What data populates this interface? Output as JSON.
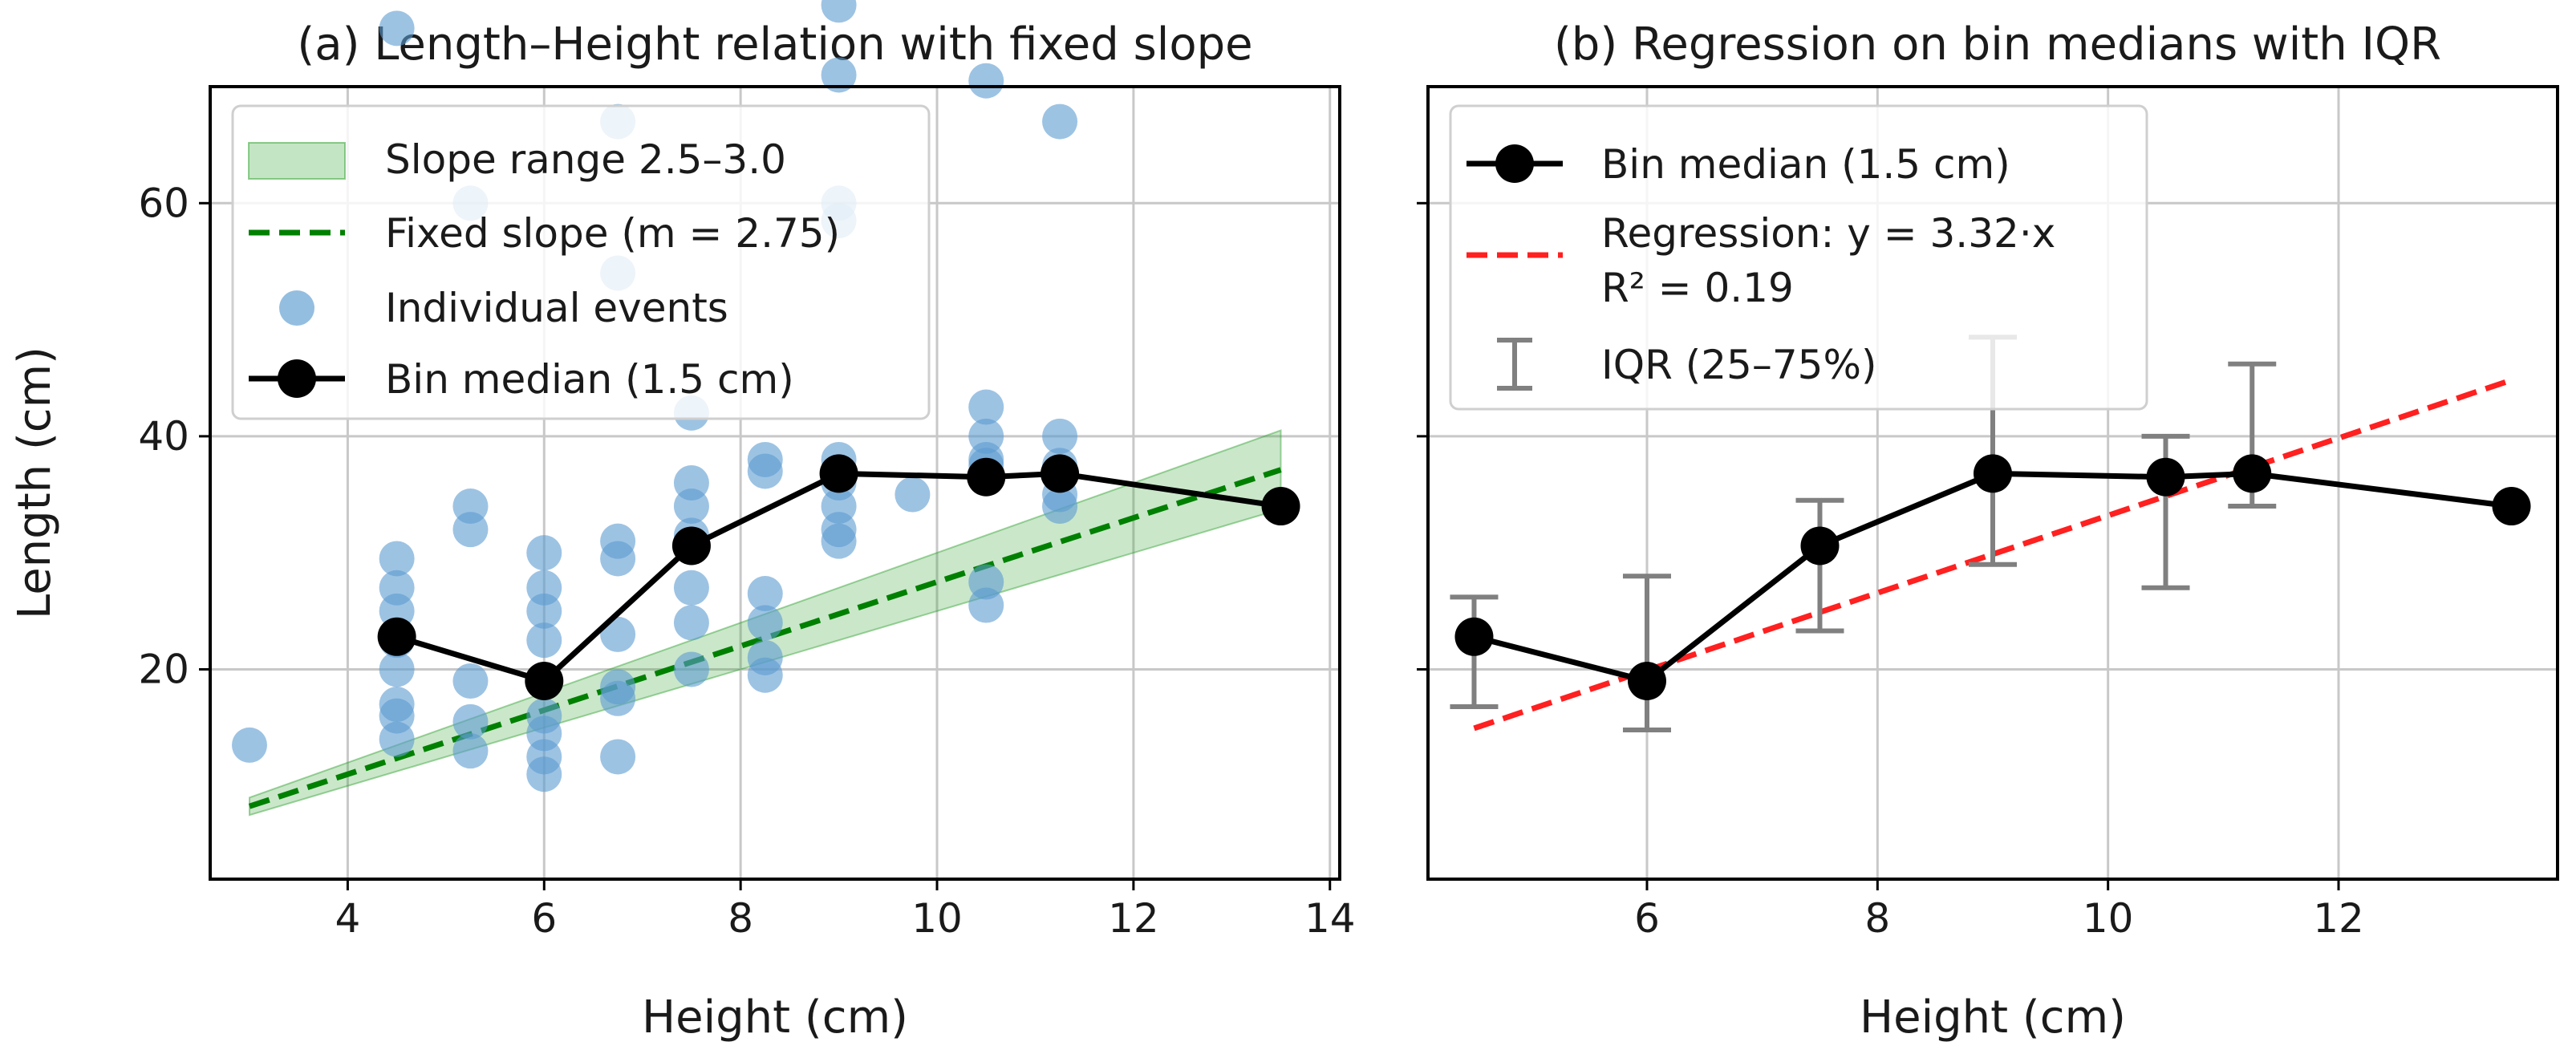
{
  "figure": {
    "panels": [
      {
        "id": "a",
        "title": "(a) Length–Height relation with fixed slope",
        "xlabel": "Height (cm)",
        "ylabel": "Length (cm)"
      },
      {
        "id": "b",
        "title": "(b) Regression on bin medians with IQR",
        "xlabel": "Height (cm)",
        "ylabel": ""
      }
    ]
  },
  "colors": {
    "scatter": "#5b9bd0",
    "band": "#2ca02c",
    "fixed_line": "#008000",
    "median": "#000000",
    "regression": "#ff2020",
    "iqr": "#808080",
    "grid": "#c8c8c8"
  },
  "chart_data": [
    {
      "type": "scatter",
      "title": "(a) Length–Height relation with fixed slope",
      "xlabel": "Height (cm)",
      "ylabel": "Length (cm)",
      "xlim": [
        2.6,
        14.1
      ],
      "ylim": [
        2.0,
        70.0
      ],
      "xticks": [
        4,
        6,
        8,
        10,
        12,
        14
      ],
      "yticks": [
        20,
        40,
        60
      ],
      "grid": true,
      "legend_position": "top-left",
      "legend": [
        {
          "key": "band",
          "label": "Slope range 2.5–3.0"
        },
        {
          "key": "fixed",
          "label": "Fixed slope (m = 2.75)"
        },
        {
          "key": "events",
          "label": "Individual events"
        },
        {
          "key": "median",
          "label": "Bin median (1.5 cm)"
        }
      ],
      "slope_band": {
        "x_range": [
          3.0,
          13.5
        ],
        "slope_min": 2.5,
        "slope_max": 3.0
      },
      "fixed_slope": {
        "x_range": [
          3.0,
          13.5
        ],
        "slope": 2.75
      },
      "individual_events": [
        {
          "x": 3.0,
          "y": 13.5
        },
        {
          "x": 4.5,
          "y": 29.5
        },
        {
          "x": 4.5,
          "y": 27
        },
        {
          "x": 4.5,
          "y": 25
        },
        {
          "x": 4.5,
          "y": 22.5
        },
        {
          "x": 4.5,
          "y": 20
        },
        {
          "x": 4.5,
          "y": 17
        },
        {
          "x": 4.5,
          "y": 16
        },
        {
          "x": 4.5,
          "y": 14
        },
        {
          "x": 4.5,
          "y": 75
        },
        {
          "x": 5.25,
          "y": 34
        },
        {
          "x": 5.25,
          "y": 32
        },
        {
          "x": 5.25,
          "y": 19
        },
        {
          "x": 5.25,
          "y": 15.5
        },
        {
          "x": 5.25,
          "y": 13
        },
        {
          "x": 5.25,
          "y": 60
        },
        {
          "x": 6.0,
          "y": 30
        },
        {
          "x": 6.0,
          "y": 27
        },
        {
          "x": 6.0,
          "y": 25
        },
        {
          "x": 6.0,
          "y": 22.5
        },
        {
          "x": 6.0,
          "y": 19
        },
        {
          "x": 6.0,
          "y": 16
        },
        {
          "x": 6.0,
          "y": 14.5
        },
        {
          "x": 6.0,
          "y": 12.5
        },
        {
          "x": 6.0,
          "y": 11
        },
        {
          "x": 6.75,
          "y": 67
        },
        {
          "x": 6.75,
          "y": 54
        },
        {
          "x": 6.75,
          "y": 31
        },
        {
          "x": 6.75,
          "y": 29.5
        },
        {
          "x": 6.75,
          "y": 23
        },
        {
          "x": 6.75,
          "y": 18.5
        },
        {
          "x": 6.75,
          "y": 17.5
        },
        {
          "x": 6.75,
          "y": 12.5
        },
        {
          "x": 7.5,
          "y": 42
        },
        {
          "x": 7.5,
          "y": 36
        },
        {
          "x": 7.5,
          "y": 34
        },
        {
          "x": 7.5,
          "y": 31.5
        },
        {
          "x": 7.5,
          "y": 27
        },
        {
          "x": 7.5,
          "y": 24
        },
        {
          "x": 7.5,
          "y": 20
        },
        {
          "x": 8.25,
          "y": 38
        },
        {
          "x": 8.25,
          "y": 37
        },
        {
          "x": 8.25,
          "y": 26.5
        },
        {
          "x": 8.25,
          "y": 24
        },
        {
          "x": 8.25,
          "y": 21
        },
        {
          "x": 8.25,
          "y": 19.5
        },
        {
          "x": 9.0,
          "y": 77
        },
        {
          "x": 9.0,
          "y": 71
        },
        {
          "x": 9.0,
          "y": 60
        },
        {
          "x": 9.0,
          "y": 58.5
        },
        {
          "x": 9.0,
          "y": 38
        },
        {
          "x": 9.0,
          "y": 36
        },
        {
          "x": 9.0,
          "y": 34
        },
        {
          "x": 9.0,
          "y": 32
        },
        {
          "x": 9.0,
          "y": 31
        },
        {
          "x": 9.75,
          "y": 35
        },
        {
          "x": 10.5,
          "y": 70.5
        },
        {
          "x": 10.5,
          "y": 42.5
        },
        {
          "x": 10.5,
          "y": 40
        },
        {
          "x": 10.5,
          "y": 38
        },
        {
          "x": 10.5,
          "y": 37.5
        },
        {
          "x": 10.5,
          "y": 27.5
        },
        {
          "x": 10.5,
          "y": 25.5
        },
        {
          "x": 11.25,
          "y": 67
        },
        {
          "x": 11.25,
          "y": 40
        },
        {
          "x": 11.25,
          "y": 37.5
        },
        {
          "x": 11.25,
          "y": 35
        },
        {
          "x": 11.25,
          "y": 34
        },
        {
          "x": 13.5,
          "y": 34
        }
      ],
      "bin_medians": [
        {
          "x": 4.5,
          "y": 22.8
        },
        {
          "x": 6.0,
          "y": 19.0
        },
        {
          "x": 7.5,
          "y": 30.6
        },
        {
          "x": 9.0,
          "y": 36.8
        },
        {
          "x": 10.5,
          "y": 36.5
        },
        {
          "x": 11.25,
          "y": 36.8
        },
        {
          "x": 13.5,
          "y": 34.0
        }
      ]
    },
    {
      "type": "line",
      "title": "(b) Regression on bin medians with IQR",
      "xlabel": "Height (cm)",
      "xlim": [
        4.1,
        13.9
      ],
      "ylim": [
        2.0,
        70.0
      ],
      "xticks": [
        6,
        8,
        10,
        12
      ],
      "yticks": [
        20,
        40,
        60
      ],
      "grid": true,
      "legend_position": "top-left",
      "legend": [
        {
          "key": "median",
          "label": "Bin median (1.5 cm)"
        },
        {
          "key": "regression",
          "label": "Regression: y = 3.32·x",
          "label2": "R² = 0.19"
        },
        {
          "key": "iqr",
          "label": "IQR (25–75%)"
        }
      ],
      "regression": {
        "slope": 3.32,
        "x_range": [
          4.5,
          13.5
        ]
      },
      "bin_medians": [
        {
          "x": 4.5,
          "y": 22.8,
          "q1": 16.8,
          "q3": 26.2
        },
        {
          "x": 6.0,
          "y": 19.0,
          "q1": 14.8,
          "q3": 28.0
        },
        {
          "x": 7.5,
          "y": 30.6,
          "q1": 23.3,
          "q3": 34.5
        },
        {
          "x": 9.0,
          "y": 36.8,
          "q1": 29.0,
          "q3": 48.5
        },
        {
          "x": 10.5,
          "y": 36.5,
          "q1": 27.0,
          "q3": 40.0
        },
        {
          "x": 11.25,
          "y": 36.8,
          "q1": 34.0,
          "q3": 46.2
        },
        {
          "x": 13.5,
          "y": 34.0,
          "q1": 34.0,
          "q3": 34.0
        }
      ]
    }
  ]
}
